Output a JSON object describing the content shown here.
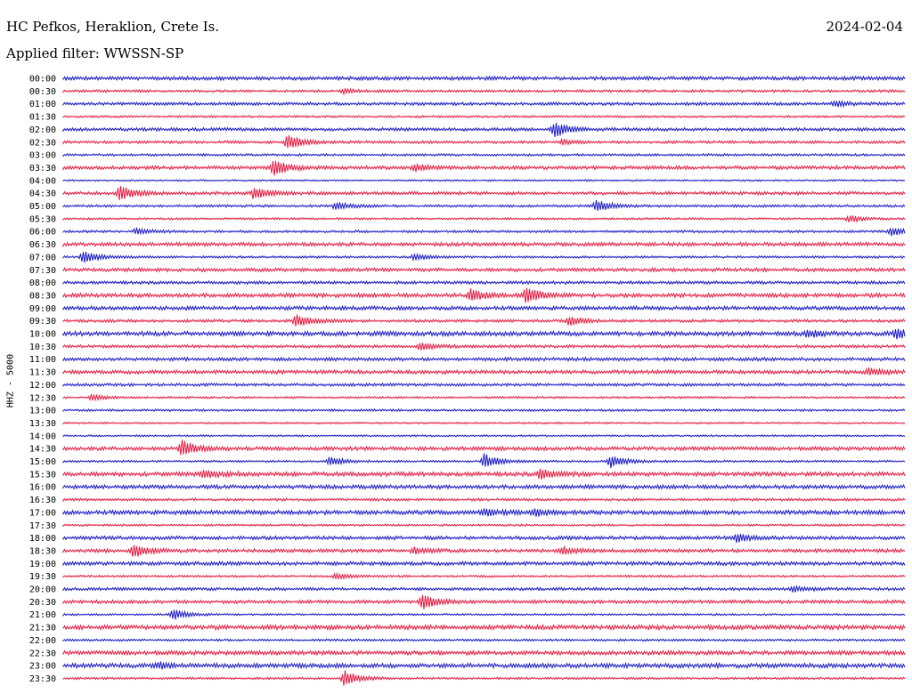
{
  "header": {
    "station": "HC Pefkos, Heraklion, Crete Is.",
    "filter": "Applied filter: WWSSN-SP",
    "date": "2024-02-04",
    "channel": "HHZ - 5000"
  },
  "colors": {
    "even_row": "#1515c8",
    "odd_row": "#e8163c"
  },
  "chart_data": {
    "type": "line",
    "title": "HC Pefkos, Heraklion, Crete Is.",
    "subtitle": "Applied filter: WWSSN-SP",
    "date": "2024-02-04",
    "ylabel": "HHZ - 5000",
    "row_labels": [
      "00:00",
      "00:30",
      "01:00",
      "01:30",
      "02:00",
      "02:30",
      "03:00",
      "03:30",
      "04:00",
      "04:30",
      "05:00",
      "05:30",
      "06:00",
      "06:30",
      "07:00",
      "07:30",
      "08:00",
      "08:30",
      "09:00",
      "09:30",
      "10:00",
      "10:30",
      "11:00",
      "11:30",
      "12:00",
      "12:30",
      "13:00",
      "13:30",
      "14:00",
      "14:30",
      "15:00",
      "15:30",
      "16:00",
      "16:30",
      "17:00",
      "17:30",
      "18:00",
      "18:30",
      "19:00",
      "19:30",
      "20:00",
      "20:30",
      "21:00",
      "21:30",
      "22:00",
      "22:30",
      "23:00",
      "23:30"
    ],
    "events": [
      {
        "row": "00:30",
        "minute": 10.0,
        "amp": 0.25
      },
      {
        "row": "01:00",
        "minute": 27.5,
        "amp": 0.35
      },
      {
        "row": "02:00",
        "minute": 17.5,
        "amp": 1.0
      },
      {
        "row": "02:30",
        "minute": 8.0,
        "amp": 1.0
      },
      {
        "row": "02:30",
        "minute": 17.8,
        "amp": 0.3
      },
      {
        "row": "03:30",
        "minute": 7.5,
        "amp": 1.0
      },
      {
        "row": "03:30",
        "minute": 12.5,
        "amp": 0.45
      },
      {
        "row": "04:30",
        "minute": 2.0,
        "amp": 0.9
      },
      {
        "row": "04:30",
        "minute": 6.8,
        "amp": 0.8
      },
      {
        "row": "05:00",
        "minute": 9.7,
        "amp": 0.45
      },
      {
        "row": "05:00",
        "minute": 19.0,
        "amp": 0.75
      },
      {
        "row": "05:30",
        "minute": 28.0,
        "amp": 0.45
      },
      {
        "row": "06:00",
        "minute": 2.6,
        "amp": 0.4
      },
      {
        "row": "06:00",
        "minute": 29.5,
        "amp": 0.5
      },
      {
        "row": "07:00",
        "minute": 0.7,
        "amp": 0.9
      },
      {
        "row": "07:00",
        "minute": 12.5,
        "amp": 0.4
      },
      {
        "row": "08:30",
        "minute": 14.5,
        "amp": 0.8
      },
      {
        "row": "08:30",
        "minute": 16.5,
        "amp": 1.0
      },
      {
        "row": "09:30",
        "minute": 8.3,
        "amp": 0.8
      },
      {
        "row": "09:30",
        "minute": 18.0,
        "amp": 0.6
      },
      {
        "row": "10:00",
        "minute": 26.5,
        "amp": 0.45
      },
      {
        "row": "10:00",
        "minute": 29.7,
        "amp": 0.55
      },
      {
        "row": "10:30",
        "minute": 12.7,
        "amp": 0.5
      },
      {
        "row": "11:30",
        "minute": 28.7,
        "amp": 0.45
      },
      {
        "row": "12:30",
        "minute": 1.0,
        "amp": 0.4
      },
      {
        "row": "14:30",
        "minute": 4.2,
        "amp": 1.0
      },
      {
        "row": "15:00",
        "minute": 9.5,
        "amp": 0.6
      },
      {
        "row": "15:00",
        "minute": 15.0,
        "amp": 1.0
      },
      {
        "row": "15:00",
        "minute": 19.5,
        "amp": 0.8
      },
      {
        "row": "15:30",
        "minute": 5.0,
        "amp": 0.5
      },
      {
        "row": "15:30",
        "minute": 17.0,
        "amp": 0.6
      },
      {
        "row": "17:00",
        "minute": 15.0,
        "amp": 0.45
      },
      {
        "row": "17:00",
        "minute": 16.8,
        "amp": 0.45
      },
      {
        "row": "18:00",
        "minute": 24.0,
        "amp": 0.55
      },
      {
        "row": "18:30",
        "minute": 2.5,
        "amp": 0.8
      },
      {
        "row": "18:30",
        "minute": 12.5,
        "amp": 0.35
      },
      {
        "row": "18:30",
        "minute": 17.8,
        "amp": 0.4
      },
      {
        "row": "19:30",
        "minute": 9.7,
        "amp": 0.35
      },
      {
        "row": "20:00",
        "minute": 26.0,
        "amp": 0.35
      },
      {
        "row": "20:30",
        "minute": 12.8,
        "amp": 1.0
      },
      {
        "row": "21:00",
        "minute": 3.9,
        "amp": 0.75
      },
      {
        "row": "23:00",
        "minute": 3.4,
        "amp": 0.3
      },
      {
        "row": "23:30",
        "minute": 10.0,
        "amp": 1.0
      }
    ]
  }
}
